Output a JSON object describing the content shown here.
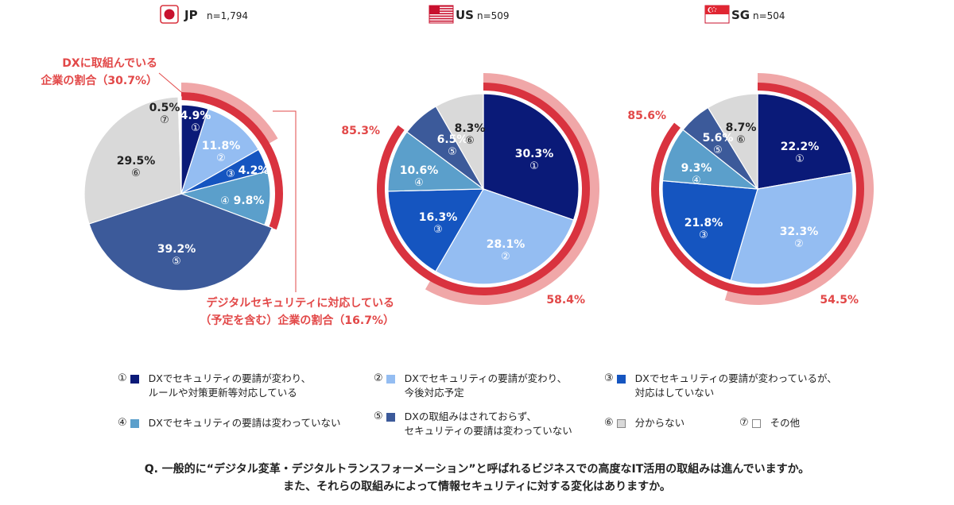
{
  "chart_data": [
    {
      "type": "pie",
      "country": "JP",
      "n": "n=1,794",
      "slices": [
        {
          "id": "①",
          "value": 4.9,
          "label": "4.9%"
        },
        {
          "id": "②",
          "value": 11.8,
          "label": "11.8%"
        },
        {
          "id": "③",
          "value": 4.2,
          "label": "4.2%"
        },
        {
          "id": "④",
          "value": 9.8,
          "label": "9.8%"
        },
        {
          "id": "⑤",
          "value": 39.2,
          "label": "39.2%"
        },
        {
          "id": "⑥",
          "value": 29.5,
          "label": "29.5%"
        },
        {
          "id": "⑦",
          "value": 0.5,
          "label": "0.5%"
        }
      ],
      "annotations": {
        "dx_share": "DXに取組んでいる企業の割合（30.7%）",
        "security_share": "デジタルセキュリティに対応している（予定を含む）企業の割合（16.7%）"
      }
    },
    {
      "type": "pie",
      "country": "US",
      "n": "n=509",
      "slices": [
        {
          "id": "①",
          "value": 30.3,
          "label": "30.3%"
        },
        {
          "id": "②",
          "value": 28.1,
          "label": "28.1%"
        },
        {
          "id": "③",
          "value": 16.3,
          "label": "16.3%"
        },
        {
          "id": "④",
          "value": 10.6,
          "label": "10.6%"
        },
        {
          "id": "⑤",
          "value": 6.5,
          "label": "6.5%"
        },
        {
          "id": "⑥",
          "value": 8.3,
          "label": "8.3%"
        }
      ],
      "annotations": {
        "dx_share": "85.3%",
        "security_share": "58.4%"
      }
    },
    {
      "type": "pie",
      "country": "SG",
      "n": "n=504",
      "slices": [
        {
          "id": "①",
          "value": 22.2,
          "label": "22.2%"
        },
        {
          "id": "②",
          "value": 32.3,
          "label": "32.3%"
        },
        {
          "id": "③",
          "value": 21.8,
          "label": "21.8%"
        },
        {
          "id": "④",
          "value": 9.3,
          "label": "9.3%"
        },
        {
          "id": "⑤",
          "value": 5.6,
          "label": "5.6%"
        },
        {
          "id": "⑥",
          "value": 8.7,
          "label": "8.7%"
        }
      ],
      "annotations": {
        "dx_share": "85.6%",
        "security_share": "54.5%"
      }
    }
  ],
  "colors": {
    "①": "#0a1a78",
    "②": "#94bdf2",
    "③": "#1555c0",
    "④": "#5b9fcb",
    "⑤": "#3c5a9a",
    "⑥": "#d9d9d9",
    "⑦": "#ffffff",
    "dx_ring": "#d9333f",
    "security_ring": "#f0a7a8"
  },
  "legend": [
    {
      "id": "①",
      "line1": "DXでセキュリティの要請が変わり、",
      "line2": "ルールや対策更新等対応している"
    },
    {
      "id": "②",
      "line1": "DXでセキュリティの要請が変わり、",
      "line2": "今後対応予定"
    },
    {
      "id": "③",
      "line1": "DXでセキュリティの要請が変わっているが、",
      "line2": "対応はしていない"
    },
    {
      "id": "④",
      "line1": "DXでセキュリティの要請は変わっていない",
      "line2": ""
    },
    {
      "id": "⑤",
      "line1": "DXの取組みはされておらず、",
      "line2": "セキュリティの要請は変わっていない"
    },
    {
      "id": "⑥",
      "line1": "分からない",
      "line2": ""
    },
    {
      "id": "⑦",
      "line1": "その他",
      "line2": ""
    }
  ],
  "question": {
    "line1": "Q. 一般的に“デジタル変革・デジタルトランスフォーメーション”と呼ばれるビジネスでの高度なIT活用の取組みは進んでいますか。",
    "line2": "また、それらの取組みによって情報セキュリティに対する変化はありますか。"
  }
}
